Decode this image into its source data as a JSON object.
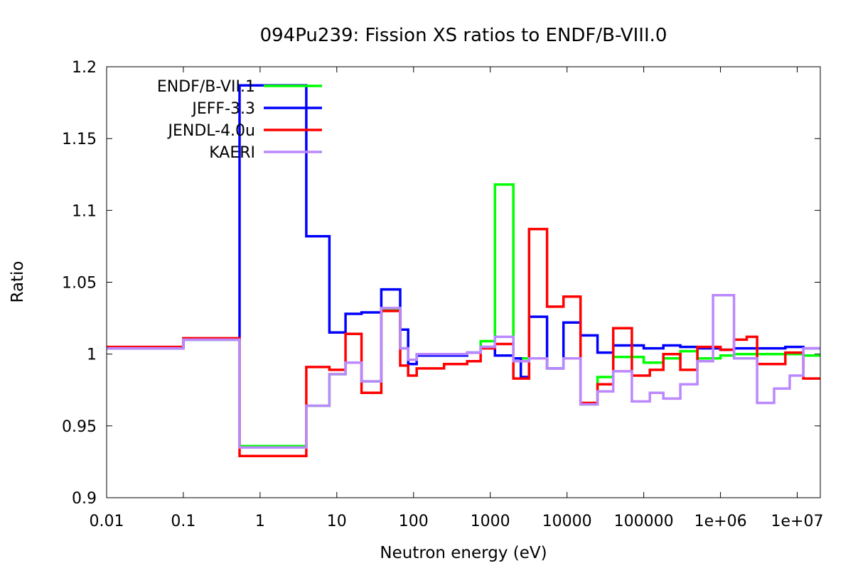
{
  "chart_data": {
    "type": "line",
    "title": "094Pu239: Fission XS ratios to ENDF/B-VIII.0",
    "xlabel": "Neutron energy (eV)",
    "ylabel": "Ratio",
    "x_scale": "log",
    "xlim": [
      0.01,
      20000000
    ],
    "ylim": [
      0.9,
      1.2
    ],
    "x_ticks": [
      0.01,
      0.1,
      1,
      10,
      100,
      1000,
      10000,
      100000,
      1000000,
      10000000
    ],
    "x_tick_labels": [
      "0.01",
      "0.1",
      "1",
      "10",
      "100",
      "1000",
      "10000",
      "100000",
      "1e+06",
      "1e+07"
    ],
    "y_ticks": [
      0.9,
      0.95,
      1.0,
      1.05,
      1.1,
      1.15,
      1.2
    ],
    "y_tick_labels": [
      "0.9",
      "0.95",
      "1",
      "1.05",
      "1.1",
      "1.15",
      "1.2"
    ],
    "legend_position": "top-left",
    "grid": false,
    "step": true,
    "series": [
      {
        "name": "ENDF/B-VII.1",
        "color": "#00ff00",
        "points": [
          [
            0.01,
            1.004
          ],
          [
            0.1,
            1.01
          ],
          [
            0.54,
            0.936
          ],
          [
            4,
            0.964
          ],
          [
            8,
            0.986
          ],
          [
            13,
            0.994
          ],
          [
            21,
            0.981
          ],
          [
            38,
            1.031
          ],
          [
            67,
            1.004
          ],
          [
            85,
            0.996
          ],
          [
            110,
            1.0
          ],
          [
            250,
            1.0
          ],
          [
            500,
            1.001
          ],
          [
            750,
            1.009
          ],
          [
            1150,
            1.118
          ],
          [
            2000,
            0.997
          ],
          [
            3200,
            0.997
          ],
          [
            5500,
            0.99
          ],
          [
            9000,
            0.997
          ],
          [
            15000,
            0.965
          ],
          [
            25000,
            0.984
          ],
          [
            40000,
            0.998
          ],
          [
            100000,
            0.994
          ],
          [
            180000,
            0.997
          ],
          [
            300000,
            1.002
          ],
          [
            500000,
            0.997
          ],
          [
            1000000,
            0.999
          ],
          [
            1500000,
            1.0
          ],
          [
            3000000,
            1.0
          ],
          [
            7000000,
            1.0
          ],
          [
            12000000,
            0.999
          ],
          [
            20000000,
            0.999
          ]
        ]
      },
      {
        "name": "JEFF-3.3",
        "color": "#0000ff",
        "points": [
          [
            0.01,
            1.004
          ],
          [
            0.1,
            1.01
          ],
          [
            0.54,
            1.187
          ],
          [
            4,
            1.082
          ],
          [
            8,
            1.015
          ],
          [
            13,
            1.028
          ],
          [
            21,
            1.029
          ],
          [
            38,
            1.045
          ],
          [
            67,
            1.017
          ],
          [
            85,
            0.993
          ],
          [
            110,
            0.999
          ],
          [
            250,
            0.999
          ],
          [
            500,
            1.001
          ],
          [
            750,
            1.005
          ],
          [
            1150,
            0.999
          ],
          [
            2000,
            0.997
          ],
          [
            2500,
            0.984
          ],
          [
            3200,
            1.026
          ],
          [
            5500,
            0.99
          ],
          [
            9000,
            1.022
          ],
          [
            15000,
            1.013
          ],
          [
            25000,
            1.001
          ],
          [
            40000,
            1.006
          ],
          [
            100000,
            1.004
          ],
          [
            180000,
            1.006
          ],
          [
            300000,
            1.005
          ],
          [
            500000,
            1.004
          ],
          [
            1000000,
            1.003
          ],
          [
            1500000,
            1.004
          ],
          [
            3000000,
            1.004
          ],
          [
            7000000,
            1.005
          ],
          [
            12000000,
            1.004
          ],
          [
            20000000,
            1.004
          ]
        ]
      },
      {
        "name": "JENDL-4.0u",
        "color": "#ff0000",
        "points": [
          [
            0.01,
            1.005
          ],
          [
            0.1,
            1.011
          ],
          [
            0.54,
            0.929
          ],
          [
            4,
            0.991
          ],
          [
            8,
            0.989
          ],
          [
            13,
            1.014
          ],
          [
            21,
            0.973
          ],
          [
            38,
            1.03
          ],
          [
            67,
            0.992
          ],
          [
            85,
            0.985
          ],
          [
            110,
            0.99
          ],
          [
            250,
            0.993
          ],
          [
            500,
            0.995
          ],
          [
            750,
            1.004
          ],
          [
            1150,
            1.007
          ],
          [
            2000,
            0.983
          ],
          [
            3200,
            1.087
          ],
          [
            5500,
            1.033
          ],
          [
            9000,
            1.04
          ],
          [
            15000,
            0.966
          ],
          [
            25000,
            0.979
          ],
          [
            40000,
            1.018
          ],
          [
            70000,
            0.985
          ],
          [
            120000,
            0.989
          ],
          [
            180000,
            1.0
          ],
          [
            300000,
            0.989
          ],
          [
            500000,
            1.005
          ],
          [
            1000000,
            1.003
          ],
          [
            1500000,
            1.01
          ],
          [
            2200000,
            1.012
          ],
          [
            3000000,
            0.993
          ],
          [
            7000000,
            1.001
          ],
          [
            12000000,
            0.983
          ],
          [
            20000000,
            0.983
          ]
        ]
      },
      {
        "name": "KAERI",
        "color": "#bb88ff",
        "points": [
          [
            0.01,
            1.004
          ],
          [
            0.1,
            1.01
          ],
          [
            0.54,
            0.935
          ],
          [
            4,
            0.964
          ],
          [
            8,
            0.986
          ],
          [
            13,
            0.994
          ],
          [
            21,
            0.981
          ],
          [
            38,
            1.032
          ],
          [
            67,
            1.004
          ],
          [
            85,
            0.996
          ],
          [
            110,
            1.0
          ],
          [
            250,
            1.0
          ],
          [
            500,
            1.001
          ],
          [
            750,
            1.005
          ],
          [
            1150,
            1.012
          ],
          [
            2000,
            0.995
          ],
          [
            3200,
            0.997
          ],
          [
            5500,
            0.99
          ],
          [
            9000,
            0.997
          ],
          [
            15000,
            0.965
          ],
          [
            25000,
            0.974
          ],
          [
            40000,
            0.988
          ],
          [
            70000,
            0.967
          ],
          [
            120000,
            0.973
          ],
          [
            180000,
            0.969
          ],
          [
            300000,
            0.979
          ],
          [
            500000,
            0.995
          ],
          [
            800000,
            1.041
          ],
          [
            1500000,
            0.997
          ],
          [
            3000000,
            0.966
          ],
          [
            5000000,
            0.976
          ],
          [
            8000000,
            0.985
          ],
          [
            12000000,
            1.004
          ],
          [
            20000000,
            1.004
          ]
        ]
      }
    ]
  }
}
